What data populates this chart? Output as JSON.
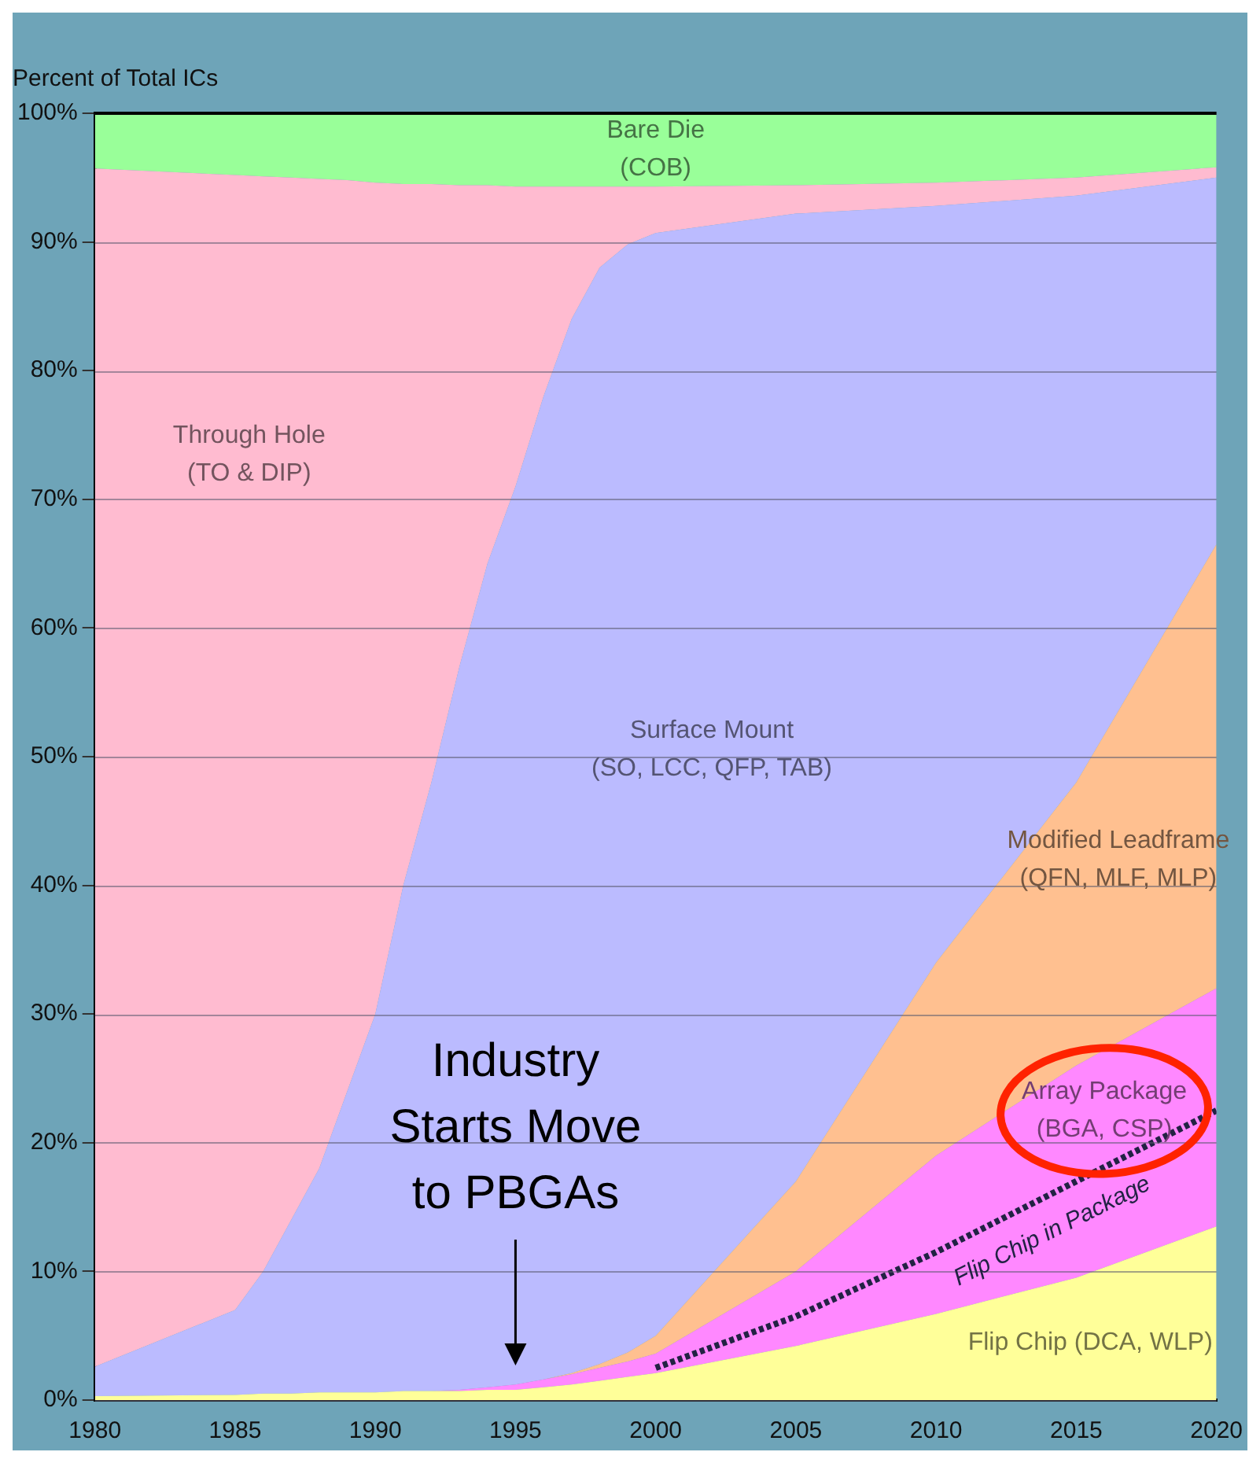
{
  "chart_data": {
    "type": "area",
    "stacked": true,
    "ylabel": "Percent of Total ICs",
    "x": [
      1980,
      1985,
      1986,
      1987,
      1988,
      1989,
      1990,
      1991,
      1992,
      1993,
      1994,
      1995,
      1996,
      1997,
      1998,
      1999,
      2000,
      2005,
      2010,
      2015,
      2020
    ],
    "series": [
      {
        "name": "Flip Chip (DCA, WLP)",
        "color": "#ffff99",
        "values": [
          0.3,
          0.4,
          0.5,
          0.5,
          0.6,
          0.6,
          0.6,
          0.7,
          0.7,
          0.7,
          0.8,
          0.8,
          1.0,
          1.2,
          1.5,
          1.8,
          2.1,
          4.2,
          6.7,
          9.5,
          13.5
        ]
      },
      {
        "name": "Array Package (BGA, CSP)",
        "color": "#ff88ff",
        "values": [
          0,
          0,
          0,
          0,
          0,
          0,
          0,
          0,
          0,
          0.1,
          0.2,
          0.4,
          0.6,
          0.8,
          1.0,
          1.2,
          1.5,
          5.8,
          12.3,
          16.5,
          18.5
        ]
      },
      {
        "name": "Modified Leadframe (QFN, MLF, MLP)",
        "color": "#ffc090",
        "values": [
          0,
          0,
          0,
          0,
          0,
          0,
          0,
          0,
          0,
          0,
          0,
          0,
          0,
          0.1,
          0.3,
          0.7,
          1.4,
          7,
          15,
          22,
          34.5
        ]
      },
      {
        "name": "Surface Mount (SO, LCC, QFP, TAB)",
        "color": "#bbbbff",
        "values": [
          2.3,
          6.6,
          9.5,
          13.5,
          17.4,
          23.4,
          29.4,
          39.3,
          47.3,
          56.2,
          64,
          69.8,
          76.4,
          81.9,
          85.2,
          86.1,
          85.7,
          75.2,
          58.8,
          45.6,
          28.5
        ]
      },
      {
        "name": "Through Hole (TO & DIP)",
        "color": "#ffbbd0",
        "values": [
          93.1,
          88.2,
          85.1,
          81,
          76.9,
          70.8,
          64.6,
          54.5,
          46.5,
          37.4,
          29.4,
          23.3,
          16.3,
          10.3,
          6.3,
          4.5,
          3.6,
          2.2,
          1.8,
          1.4,
          0.8
        ]
      },
      {
        "name": "Bare Die (COB)",
        "color": "#99ff99",
        "values": [
          4.3,
          4.8,
          4.9,
          5,
          5.1,
          5.2,
          5.4,
          5.5,
          5.5,
          5.6,
          5.6,
          5.7,
          5.7,
          5.7,
          5.7,
          5.7,
          5.7,
          5.6,
          5.4,
          5,
          4.2
        ]
      },
      {
        "name": "Flip Chip in Package",
        "type": "line",
        "color": "#222244",
        "line_style": "dotted",
        "x": [
          2000,
          2005,
          2010,
          2015,
          2020
        ],
        "values": [
          2.5,
          6.5,
          11.5,
          17,
          22.5
        ]
      }
    ],
    "xlim": [
      1980,
      2020
    ],
    "xticks": [
      1980,
      1985,
      1990,
      1995,
      2000,
      2005,
      2010,
      2015,
      2020
    ],
    "ylim": [
      0,
      100
    ],
    "yticks": [
      {
        "value": 0,
        "label": "0%"
      },
      {
        "value": 10,
        "label": "10%"
      },
      {
        "value": 20,
        "label": "20%"
      },
      {
        "value": 30,
        "label": "30%"
      },
      {
        "value": 40,
        "label": "40%"
      },
      {
        "value": 50,
        "label": "50%"
      },
      {
        "value": 60,
        "label": "60%"
      },
      {
        "value": 70,
        "label": "70%"
      },
      {
        "value": 80,
        "label": "80%"
      },
      {
        "value": 90,
        "label": "90%"
      },
      {
        "value": 100,
        "label": "100%"
      }
    ],
    "grid": "y",
    "legend": false,
    "annotations": [
      "Industry Starts Move to PBGAs"
    ]
  }
}
